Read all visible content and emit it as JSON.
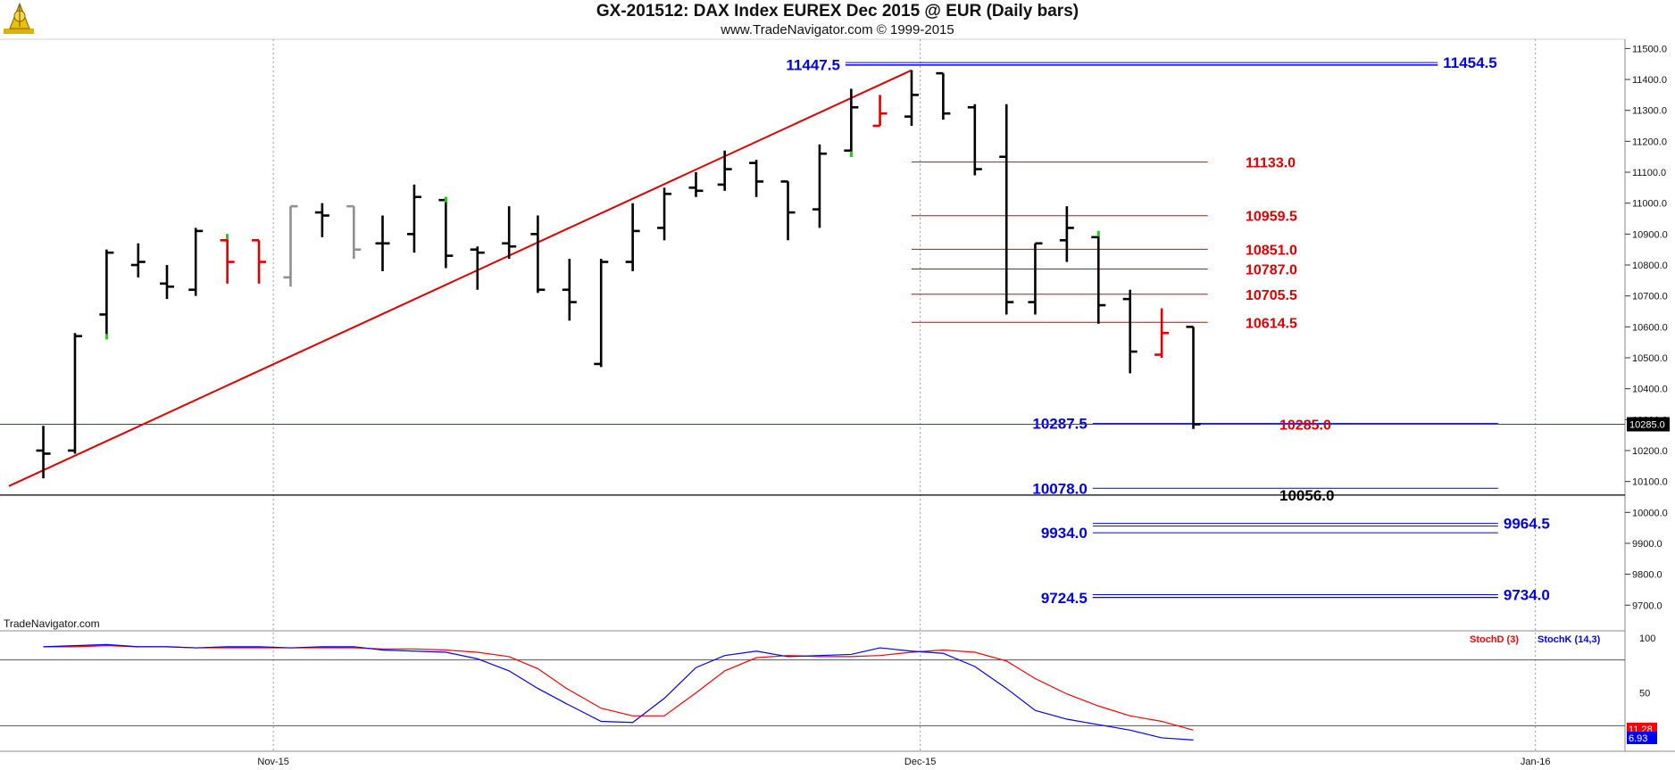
{
  "header": {
    "title": "GX-201512:  DAX Index EUREX Dec 2015 @ EUR  (Daily bars)",
    "subtitle": "www.TradeNavigator.com © 1999-2015",
    "logo_icon": "trade-navigator-logo-icon"
  },
  "watermark": "TradeNavigator.com",
  "colors": {
    "bar": "#000000",
    "bar_down_red": "#e00000",
    "bar_gray": "#909090",
    "tick_green": "#22cc22",
    "trendline": "#e00000",
    "level_red": "#e00000",
    "level_blue": "#0000ee",
    "level_black": "#000000",
    "stoch_d": "#ff0000",
    "stoch_k": "#0000ff"
  },
  "chart_data": [
    {
      "type": "ohlc",
      "title": "GX-201512:  DAX Index EUREX Dec 2015 @ EUR  (Daily bars)",
      "ylim": [
        9620,
        11530
      ],
      "xlim": [
        0,
        52
      ],
      "y_ticks": [
        "11500.0",
        "11400.0",
        "11300.0",
        "11200.0",
        "11100.0",
        "11000.0",
        "10900.0",
        "10800.0",
        "10700.0",
        "10600.0",
        "10500.0",
        "10400.0",
        "10300.0",
        "10200.0",
        "10100.0",
        "10000.0",
        "9900.0",
        "9800.0",
        "9700.0"
      ],
      "x_ticks": [
        {
          "label": "Nov-15",
          "x": 8.7
        },
        {
          "label": "Dec-15",
          "x": 31.2
        },
        {
          "label": "Jan-16",
          "x": 52.6
        }
      ],
      "current_price_label": "10285.0",
      "bars": [
        {
          "x": 0.7,
          "o": 10200,
          "h": 10280,
          "l": 10110,
          "c": 10190,
          "color": "black"
        },
        {
          "x": 1.8,
          "o": 10200,
          "h": 10580,
          "l": 10190,
          "c": 10570,
          "color": "black"
        },
        {
          "x": 2.9,
          "o": 10640,
          "h": 10850,
          "l": 10560,
          "c": 10840,
          "color": "black",
          "tick": "low"
        },
        {
          "x": 4.0,
          "o": 10800,
          "h": 10870,
          "l": 10760,
          "c": 10810,
          "color": "black"
        },
        {
          "x": 5.0,
          "o": 10740,
          "h": 10800,
          "l": 10690,
          "c": 10730,
          "color": "black"
        },
        {
          "x": 6.0,
          "o": 10720,
          "h": 10920,
          "l": 10700,
          "c": 10910,
          "color": "black"
        },
        {
          "x": 7.1,
          "o": 10880,
          "h": 10900,
          "l": 10740,
          "c": 10810,
          "color": "red",
          "tick": "high"
        },
        {
          "x": 8.2,
          "o": 10880,
          "h": 10880,
          "l": 10740,
          "c": 10810,
          "color": "red"
        },
        {
          "x": 9.3,
          "o": 10760,
          "h": 10990,
          "l": 10730,
          "c": 10990,
          "color": "gray"
        },
        {
          "x": 10.4,
          "o": 10970,
          "h": 11000,
          "l": 10890,
          "c": 10960,
          "color": "black"
        },
        {
          "x": 11.5,
          "o": 10990,
          "h": 10990,
          "l": 10820,
          "c": 10850,
          "color": "gray"
        },
        {
          "x": 12.5,
          "o": 10870,
          "h": 10960,
          "l": 10780,
          "c": 10870,
          "color": "black"
        },
        {
          "x": 13.6,
          "o": 10900,
          "h": 11060,
          "l": 10840,
          "c": 11020,
          "color": "black"
        },
        {
          "x": 14.7,
          "o": 11010,
          "h": 11020,
          "l": 10790,
          "c": 10830,
          "color": "black",
          "tick": "high"
        },
        {
          "x": 15.8,
          "o": 10850,
          "h": 10860,
          "l": 10720,
          "c": 10840,
          "color": "black"
        },
        {
          "x": 16.9,
          "o": 10870,
          "h": 10990,
          "l": 10820,
          "c": 10860,
          "color": "black"
        },
        {
          "x": 17.9,
          "o": 10900,
          "h": 10960,
          "l": 10710,
          "c": 10720,
          "color": "black"
        },
        {
          "x": 19.0,
          "o": 10720,
          "h": 10820,
          "l": 10620,
          "c": 10680,
          "color": "black"
        },
        {
          "x": 20.1,
          "o": 10480,
          "h": 10820,
          "l": 10470,
          "c": 10810,
          "color": "black"
        },
        {
          "x": 21.2,
          "o": 10810,
          "h": 11000,
          "l": 10780,
          "c": 10910,
          "color": "black"
        },
        {
          "x": 22.3,
          "o": 10920,
          "h": 11050,
          "l": 10880,
          "c": 11030,
          "color": "black"
        },
        {
          "x": 23.4,
          "o": 11050,
          "h": 11100,
          "l": 11020,
          "c": 11040,
          "color": "black"
        },
        {
          "x": 24.4,
          "o": 11060,
          "h": 11170,
          "l": 11040,
          "c": 11110,
          "color": "black"
        },
        {
          "x": 25.5,
          "o": 11130,
          "h": 11140,
          "l": 11020,
          "c": 11070,
          "color": "black"
        },
        {
          "x": 26.6,
          "o": 11070,
          "h": 11070,
          "l": 10880,
          "c": 10970,
          "color": "black"
        },
        {
          "x": 27.7,
          "o": 10980,
          "h": 11190,
          "l": 10920,
          "c": 11160,
          "color": "black"
        },
        {
          "x": 28.8,
          "o": 11170,
          "h": 11370,
          "l": 11150,
          "c": 11310,
          "color": "black",
          "tick": "low"
        },
        {
          "x": 29.8,
          "o": 11250,
          "h": 11350,
          "l": 11250,
          "c": 11290,
          "color": "red"
        },
        {
          "x": 30.9,
          "o": 11280,
          "h": 11430,
          "l": 11250,
          "c": 11350,
          "color": "black"
        },
        {
          "x": 32.0,
          "o": 11420,
          "h": 11420,
          "l": 11270,
          "c": 11290,
          "color": "black"
        },
        {
          "x": 33.1,
          "o": 11310,
          "h": 11320,
          "l": 11090,
          "c": 11110,
          "color": "black"
        },
        {
          "x": 34.2,
          "o": 11150,
          "h": 11320,
          "l": 10640,
          "c": 10680,
          "color": "black"
        },
        {
          "x": 35.2,
          "o": 10680,
          "h": 10870,
          "l": 10640,
          "c": 10870,
          "color": "black"
        },
        {
          "x": 36.3,
          "o": 10880,
          "h": 10990,
          "l": 10810,
          "c": 10920,
          "color": "black"
        },
        {
          "x": 37.4,
          "o": 10890,
          "h": 10910,
          "l": 10610,
          "c": 10670,
          "color": "black",
          "tick": "high"
        },
        {
          "x": 38.5,
          "o": 10690,
          "h": 10720,
          "l": 10450,
          "c": 10520,
          "color": "black"
        },
        {
          "x": 39.6,
          "o": 10510,
          "h": 10660,
          "l": 10500,
          "c": 10580,
          "color": "red"
        },
        {
          "x": 40.7,
          "o": 10600,
          "h": 10600,
          "l": 10270,
          "c": 10285,
          "color": "black"
        }
      ],
      "trendline": {
        "from": {
          "x": -0.5,
          "y": 10085
        },
        "to": {
          "x": 30.9,
          "y": 11430
        }
      },
      "levels": [
        {
          "value": 11454.5,
          "label": "11454.5",
          "label_pos": "right",
          "color": "blue",
          "x0": 28.6,
          "x1": 49.2,
          "double": true
        },
        {
          "value": 11447.5,
          "label": "11447.5",
          "label_pos": "left",
          "color": "blue",
          "x0": 28.6,
          "x1": 49.2,
          "double": false
        },
        {
          "value": 11133.0,
          "label": "11133.0",
          "label_pos": "right",
          "color": "red",
          "x0": 30.9,
          "x1": 41.2
        },
        {
          "value": 10959.5,
          "label": "10959.5",
          "label_pos": "right",
          "color": "red",
          "x0": 30.9,
          "x1": 41.2
        },
        {
          "value": 10851.0,
          "label": "10851.0",
          "label_pos": "right",
          "color": "red",
          "x0": 30.9,
          "x1": 41.2
        },
        {
          "value": 10787.0,
          "label": "10787.0",
          "label_pos": "right",
          "color": "red",
          "x0": 30.9,
          "x1": 41.2
        },
        {
          "value": 10705.5,
          "label": "10705.5",
          "label_pos": "right",
          "color": "red",
          "x0": 30.9,
          "x1": 41.2
        },
        {
          "value": 10614.5,
          "label": "10614.5",
          "label_pos": "right",
          "color": "red",
          "x0": 30.9,
          "x1": 41.2
        },
        {
          "value": 10287.5,
          "label": "10287.5",
          "label_pos": "left",
          "color": "blue",
          "x0": 37.2,
          "x1": 51.3
        },
        {
          "value": 10285.0,
          "label": "10285.0",
          "label_pos": "right",
          "color": "red",
          "x0": -1,
          "x1": 51.3,
          "full": true
        },
        {
          "value": 10078.0,
          "label": "10078.0",
          "label_pos": "left",
          "color": "blue",
          "x0": 37.2,
          "x1": 51.3
        },
        {
          "value": 10056.0,
          "label": "10056.0",
          "label_pos": "right",
          "color": "black",
          "x0": -1,
          "x1": 51.3,
          "full": true
        },
        {
          "value": 9964.5,
          "label": "9964.5",
          "label_pos": "right",
          "color": "blue",
          "x0": 37.2,
          "x1": 51.3,
          "double": true
        },
        {
          "value": 9934.0,
          "label": "9934.0",
          "label_pos": "left",
          "color": "blue",
          "x0": 37.2,
          "x1": 51.3
        },
        {
          "value": 9734.0,
          "label": "9734.0",
          "label_pos": "right",
          "color": "blue",
          "x0": 37.2,
          "x1": 51.3,
          "double": true
        },
        {
          "value": 9724.5,
          "label": "9724.5",
          "label_pos": "left",
          "color": "blue",
          "x0": 37.2,
          "x1": 51.3
        }
      ]
    },
    {
      "type": "line",
      "ylim": [
        0,
        100
      ],
      "y_ticks": [
        "100",
        "50"
      ],
      "reference_lines": [
        80,
        20
      ],
      "x": [
        0.7,
        1.8,
        2.9,
        4.0,
        5.0,
        6.0,
        7.1,
        8.2,
        9.3,
        10.4,
        11.5,
        12.5,
        13.6,
        14.7,
        15.8,
        16.9,
        17.9,
        18.9,
        20.1,
        21.2,
        22.3,
        23.4,
        24.4,
        25.5,
        26.6,
        27.7,
        28.8,
        29.8,
        30.9,
        32.0,
        33.1,
        34.2,
        35.2,
        36.3,
        37.4,
        38.5,
        39.6,
        40.7
      ],
      "series": [
        {
          "name": "StochD (3)",
          "color": "#ff0000",
          "values": [
            92,
            92,
            93,
            92,
            92,
            91,
            91,
            91,
            91,
            91,
            91,
            90,
            90,
            89,
            87,
            83,
            72,
            54,
            36,
            29,
            29,
            50,
            70,
            82,
            84,
            83,
            83,
            84,
            87,
            89,
            87,
            79,
            63,
            49,
            38,
            29,
            24,
            16
          ]
        },
        {
          "name": "StochK (14,3)",
          "color": "#0000ff",
          "values": [
            92,
            93,
            94,
            92,
            92,
            91,
            92,
            92,
            91,
            92,
            92,
            89,
            88,
            87,
            81,
            70,
            54,
            40,
            24,
            23,
            45,
            73,
            84,
            88,
            83,
            84,
            85,
            91,
            88,
            86,
            74,
            54,
            34,
            26,
            21,
            16,
            9,
            7
          ]
        }
      ],
      "current_values": [
        "11.28",
        "6.93"
      ]
    }
  ]
}
